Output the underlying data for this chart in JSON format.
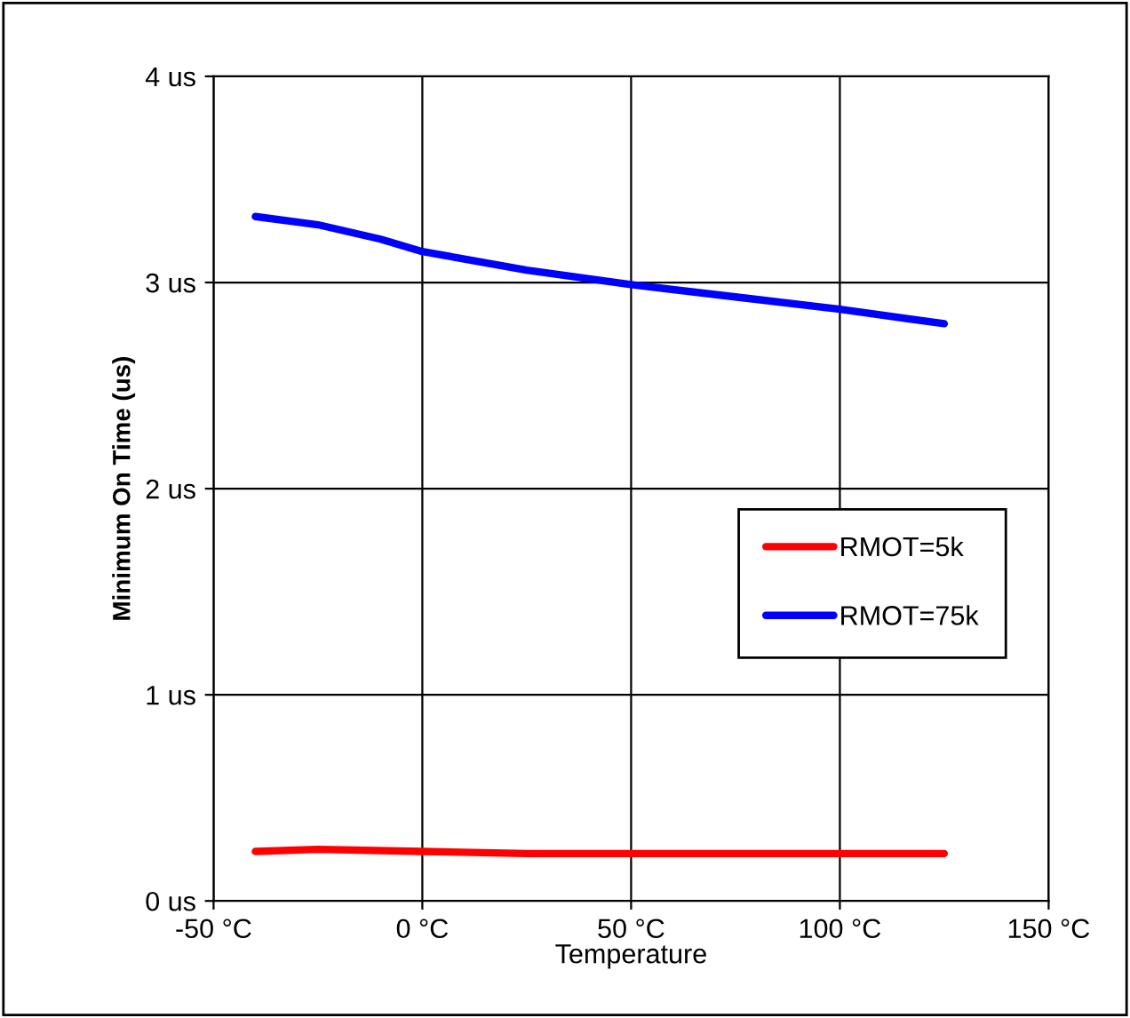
{
  "chart_data": {
    "type": "line",
    "xlabel": "Temperature",
    "ylabel": "Minimum On Time (us)",
    "xlim": [
      -50,
      150
    ],
    "ylim": [
      0,
      4
    ],
    "xticks": [
      {
        "value": -50,
        "label": "-50 °C"
      },
      {
        "value": 0,
        "label": "0 °C"
      },
      {
        "value": 50,
        "label": "50 °C"
      },
      {
        "value": 100,
        "label": "100 °C"
      },
      {
        "value": 150,
        "label": "150 °C"
      }
    ],
    "yticks": [
      {
        "value": 0,
        "label": "0 us"
      },
      {
        "value": 1,
        "label": "1 us"
      },
      {
        "value": 2,
        "label": "2 us"
      },
      {
        "value": 3,
        "label": "3 us"
      },
      {
        "value": 4,
        "label": "4 us"
      }
    ],
    "grid": true,
    "legend": "right",
    "marker": "none",
    "line_style": "solid",
    "series": [
      {
        "name": "RMOT=5k",
        "color": "#ff0000",
        "x": [
          -40,
          -25,
          0,
          25,
          50,
          75,
          100,
          125
        ],
        "values": [
          0.24,
          0.25,
          0.24,
          0.23,
          0.23,
          0.23,
          0.23,
          0.23
        ]
      },
      {
        "name": "RMOT=75k",
        "color": "#0000ff",
        "x": [
          -40,
          -25,
          -10,
          0,
          25,
          50,
          75,
          100,
          125
        ],
        "values": [
          3.32,
          3.28,
          3.21,
          3.15,
          3.06,
          2.99,
          2.93,
          2.87,
          2.8
        ]
      }
    ]
  }
}
